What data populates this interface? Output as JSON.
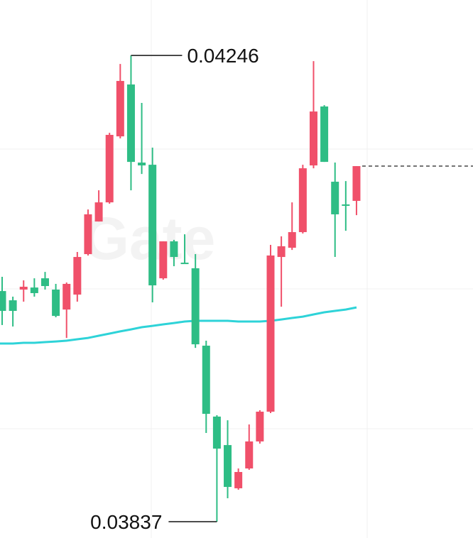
{
  "chart_data": {
    "type": "candlestick",
    "watermark": "Gate",
    "up_color": "#f0506a",
    "down_color": "#2ebd85",
    "ylim": [
      0.038227,
      0.042946
    ],
    "open": [
      0.040393,
      0.040312,
      0.040406,
      0.040424,
      0.040505,
      0.040406,
      0.040231,
      0.040362,
      0.040717,
      0.041003,
      0.041171,
      0.04175,
      0.042205,
      0.04152,
      0.041501,
      0.040505,
      0.040829,
      0.040642,
      0.040593,
      0.039914,
      0.039292,
      0.039042,
      0.038663,
      0.038837,
      0.039074,
      0.039335,
      0.040692,
      0.040773,
      0.04091,
      0.041495,
      0.042012,
      0.041352,
      0.041153,
      0.041184
    ],
    "high": [
      0.040518,
      0.040344,
      0.040487,
      0.040505,
      0.040561,
      0.040456,
      0.040468,
      0.040736,
      0.041109,
      0.041277,
      0.041781,
      0.042385,
      0.04246,
      0.042043,
      0.041651,
      0.040829,
      0.040842,
      0.040891,
      0.040717,
      0.039958,
      0.039304,
      0.03926,
      0.038837,
      0.039223,
      0.039348,
      0.040798,
      0.040873,
      0.041171,
      0.041501,
      0.04241,
      0.042024,
      0.04152,
      0.041358,
      0.041489
    ],
    "low": [
      0.040095,
      0.040082,
      0.0403,
      0.040344,
      0.040406,
      0.040163,
      0.039982,
      0.0403,
      0.040705,
      0.041003,
      0.041159,
      0.041732,
      0.041277,
      0.04142,
      0.040294,
      0.040493,
      0.040611,
      0.04063,
      0.039895,
      0.039148,
      0.03837,
      0.038576,
      0.03865,
      0.038825,
      0.039055,
      0.039323,
      0.040256,
      0.040754,
      0.040898,
      0.04147,
      0.041526,
      0.040692,
      0.040922,
      0.041059
    ],
    "close": [
      0.040219,
      0.040219,
      0.040431,
      0.040375,
      0.040437,
      0.040175,
      0.040456,
      0.040692,
      0.041066,
      0.041171,
      0.041763,
      0.042236,
      0.041526,
      0.041495,
      0.040443,
      0.040829,
      0.040692,
      0.04063,
      0.039926,
      0.039316,
      0.039011,
      0.038675,
      0.038806,
      0.039074,
      0.039335,
      0.040705,
      0.040786,
      0.04091,
      0.04147,
      0.041968,
      0.041526,
      0.041066,
      0.041147,
      0.041489
    ],
    "moving_average": {
      "color": "#2ed3d8",
      "values": [
        0.039933,
        0.039933,
        0.039939,
        0.039939,
        0.039945,
        0.039951,
        0.039958,
        0.03997,
        0.039982,
        0.040001,
        0.04002,
        0.040039,
        0.040057,
        0.040076,
        0.040088,
        0.040101,
        0.040113,
        0.040126,
        0.040132,
        0.040132,
        0.040132,
        0.040132,
        0.040126,
        0.040126,
        0.040126,
        0.040132,
        0.040144,
        0.040157,
        0.040169,
        0.040188,
        0.040207,
        0.040219,
        0.040231,
        0.04025
      ]
    },
    "annotations": [
      {
        "value": 0.04246,
        "label": "0.04246"
      },
      {
        "value": 0.03837,
        "label": "0.03837"
      }
    ]
  }
}
